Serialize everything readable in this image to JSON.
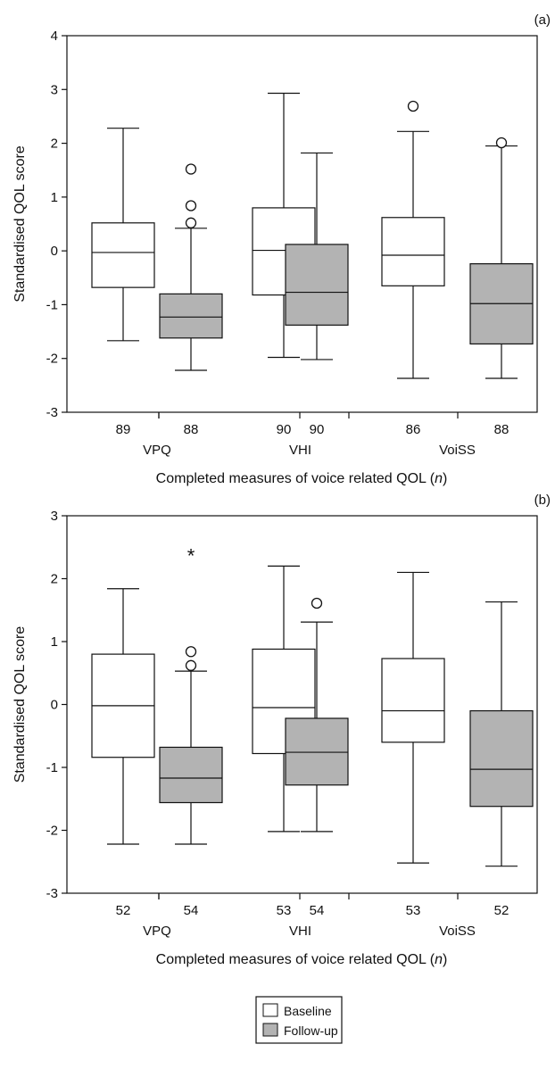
{
  "legend": {
    "items": [
      {
        "label": "Baseline",
        "fill": "#ffffff"
      },
      {
        "label": "Follow-up",
        "fill": "#b3b3b3"
      }
    ]
  },
  "chart_data": [
    {
      "type": "boxplot",
      "panel_label": "(a)",
      "ylabel": "Standardised QOL score",
      "xlabel_text": "Completed measures of voice related QOL (",
      "xlabel_n": "n",
      "xlabel_close": ")",
      "ylim": [
        -3,
        4
      ],
      "yticks": [
        -3,
        -2,
        -1,
        0,
        1,
        2,
        3,
        4
      ],
      "yticklabels": [
        "-3",
        "-2",
        "-1",
        "0",
        "1",
        "2",
        "3",
        "4"
      ],
      "groups": [
        "VPQ",
        "VHI",
        "VoiSS"
      ],
      "series": [
        {
          "name": "Baseline",
          "fill": "#ffffff",
          "boxes": [
            {
              "n": "89",
              "whisker_low": -1.67,
              "q1": -0.68,
              "median": -0.03,
              "q3": 0.52,
              "whisker_high": 2.28,
              "outliers": [],
              "extremes": []
            },
            {
              "n": "90",
              "whisker_low": -1.98,
              "q1": -0.82,
              "median": 0.01,
              "q3": 0.8,
              "whisker_high": 2.93,
              "outliers": [],
              "extremes": []
            },
            {
              "n": "86",
              "whisker_low": -2.37,
              "q1": -0.65,
              "median": -0.08,
              "q3": 0.62,
              "whisker_high": 2.22,
              "outliers": [
                2.69
              ],
              "extremes": []
            }
          ]
        },
        {
          "name": "Follow-up",
          "fill": "#b3b3b3",
          "boxes": [
            {
              "n": "88",
              "whisker_low": -2.22,
              "q1": -1.62,
              "median": -1.23,
              "q3": -0.8,
              "whisker_high": 0.42,
              "outliers": [
                1.52,
                0.84,
                0.52
              ],
              "extremes": []
            },
            {
              "n": "90",
              "whisker_low": -2.02,
              "q1": -1.38,
              "median": -0.77,
              "q3": 0.12,
              "whisker_high": 1.82,
              "outliers": [],
              "extremes": []
            },
            {
              "n": "88",
              "whisker_low": -2.37,
              "q1": -1.73,
              "median": -0.98,
              "q3": -0.24,
              "whisker_high": 1.95,
              "outliers": [
                2.01
              ],
              "extremes": []
            }
          ]
        }
      ]
    },
    {
      "type": "boxplot",
      "panel_label": "(b)",
      "ylabel": "Standardised QOL score",
      "xlabel_text": "Completed measures of voice related QOL (",
      "xlabel_n": "n",
      "xlabel_close": ")",
      "ylim": [
        -3,
        3
      ],
      "yticks": [
        -3,
        -2,
        -1,
        0,
        1,
        2,
        3
      ],
      "yticklabels": [
        "-3",
        "-2",
        "-1",
        "0",
        "1",
        "2",
        "3"
      ],
      "groups": [
        "VPQ",
        "VHI",
        "VoiSS"
      ],
      "series": [
        {
          "name": "Baseline",
          "fill": "#ffffff",
          "boxes": [
            {
              "n": "52",
              "whisker_low": -2.22,
              "q1": -0.84,
              "median": -0.02,
              "q3": 0.8,
              "whisker_high": 1.84,
              "outliers": [],
              "extremes": []
            },
            {
              "n": "53",
              "whisker_low": -2.02,
              "q1": -0.78,
              "median": -0.05,
              "q3": 0.88,
              "whisker_high": 2.2,
              "outliers": [],
              "extremes": []
            },
            {
              "n": "53",
              "whisker_low": -2.52,
              "q1": -0.6,
              "median": -0.1,
              "q3": 0.73,
              "whisker_high": 2.1,
              "outliers": [],
              "extremes": []
            }
          ]
        },
        {
          "name": "Follow-up",
          "fill": "#b3b3b3",
          "boxes": [
            {
              "n": "54",
              "whisker_low": -2.22,
              "q1": -1.56,
              "median": -1.17,
              "q3": -0.68,
              "whisker_high": 0.53,
              "outliers": [
                0.84,
                0.62
              ],
              "extremes": [
                2.38
              ]
            },
            {
              "n": "54",
              "whisker_low": -2.02,
              "q1": -1.28,
              "median": -0.76,
              "q3": -0.22,
              "whisker_high": 1.31,
              "outliers": [
                1.61
              ],
              "extremes": []
            },
            {
              "n": "52",
              "whisker_low": -2.57,
              "q1": -1.62,
              "median": -1.03,
              "q3": -0.1,
              "whisker_high": 1.63,
              "outliers": [],
              "extremes": []
            }
          ]
        }
      ]
    }
  ]
}
